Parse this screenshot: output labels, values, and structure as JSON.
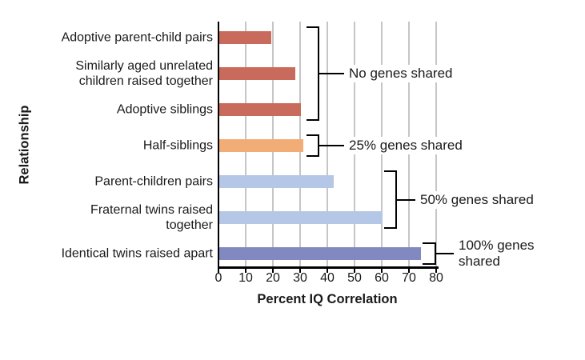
{
  "chart_data": {
    "type": "bar",
    "orientation": "horizontal",
    "xlabel": "Percent IQ Correlation",
    "ylabel": "Relationship",
    "xlim": [
      0,
      80
    ],
    "xticks": [
      0,
      10,
      20,
      30,
      40,
      50,
      60,
      70,
      80
    ],
    "grid": true,
    "categories": [
      "Adoptive parent-child pairs",
      "Similarly aged unrelated\nchildren raised together",
      "Adoptive siblings",
      "Half-siblings",
      "Parent-children pairs",
      "Fraternal twins raised\ntogether",
      "Identical twins raised apart"
    ],
    "values": [
      19,
      28,
      30,
      31,
      42,
      60,
      74
    ],
    "bar_colors": [
      "#c96b5c",
      "#c96b5c",
      "#c96b5c",
      "#f2ad76",
      "#b5c7e6",
      "#b5c7e6",
      "#8289c1"
    ],
    "annotations": [
      {
        "key": "no-genes-shared",
        "label": "No genes shared",
        "first_bar": 0,
        "last_bar": 2
      },
      {
        "key": "25pct-genes-shared",
        "label": "25% genes shared",
        "first_bar": 3,
        "last_bar": 3
      },
      {
        "key": "50pct-genes-shared",
        "label": "50% genes shared",
        "first_bar": 4,
        "last_bar": 5
      },
      {
        "key": "100pct-genes-shared",
        "label": "100% genes\nshared",
        "first_bar": 6,
        "last_bar": 6
      }
    ]
  },
  "colors": {
    "no_genes_bar": "#c96b5c",
    "quarter_genes_bar": "#f2ad76",
    "half_genes_bar": "#b5c7e6",
    "full_genes_bar": "#8289c1",
    "gridline": "#c6c6c6",
    "axis": "#000000",
    "text": "#1a1a1a"
  }
}
